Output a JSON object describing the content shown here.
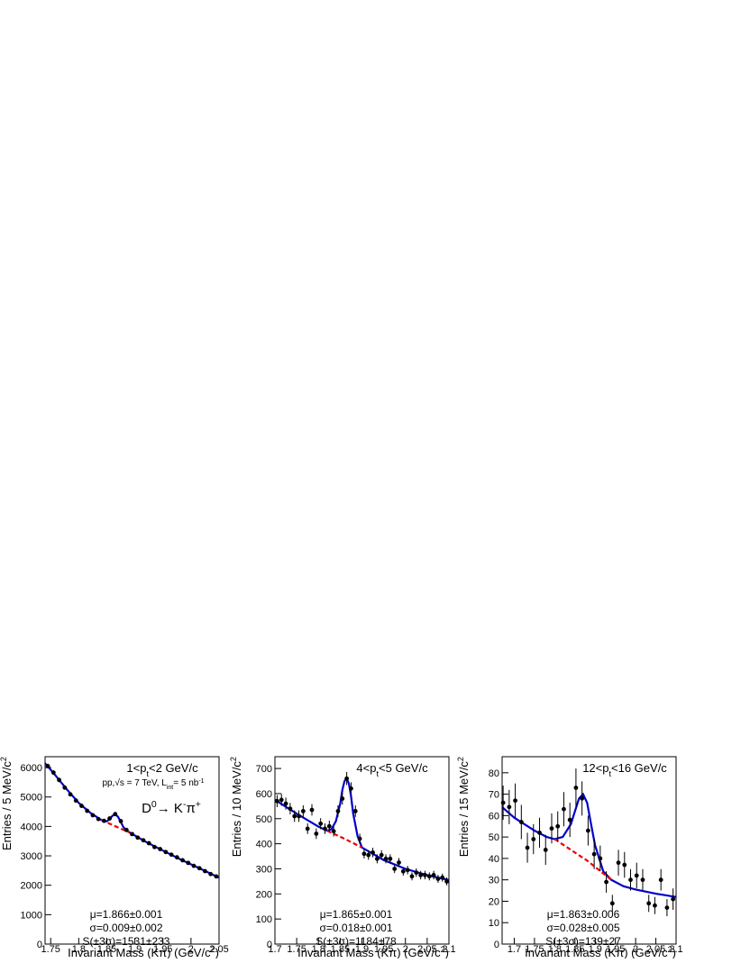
{
  "chart_data": [
    {
      "type": "errorbar",
      "title": [
        "1<p",
        {
          "text": "t",
          "pos": "sub"
        },
        "<2 GeV/c"
      ],
      "ylabel": [
        "Entries / 5 MeV/c",
        {
          "text": "2",
          "pos": "sup"
        }
      ],
      "xlabel": [
        "Invariant Mass (Kπ) (GeV/c",
        {
          "text": "2",
          "pos": "sup"
        },
        ")"
      ],
      "annotations": [
        [
          "pp,√s = 7 TeV, L",
          {
            "text": "int",
            "pos": "sub"
          },
          "= 5 nb",
          {
            "text": "-1",
            "pos": "sup"
          }
        ],
        [
          "D",
          {
            "text": "0",
            "pos": "sup"
          },
          "→ K",
          {
            "text": "-",
            "pos": "sup"
          },
          "π",
          {
            "text": "+",
            "pos": "sup"
          }
        ]
      ],
      "stats": [
        "μ=1.866±0.001",
        "σ=0.009±0.002",
        "S(±3σ)=1531±233"
      ],
      "xlim": [
        1.74,
        2.05
      ],
      "xticks": [
        1.75,
        1.8,
        1.85,
        1.9,
        1.95,
        2,
        2.05
      ],
      "ylim": [
        0,
        6370
      ],
      "yticks": [
        0,
        1000,
        2000,
        3000,
        4000,
        5000,
        6000
      ],
      "points": {
        "color": "#000000",
        "x": [
          1.745,
          1.755,
          1.765,
          1.775,
          1.785,
          1.795,
          1.805,
          1.815,
          1.825,
          1.835,
          1.845,
          1.855,
          1.865,
          1.875,
          1.885,
          1.895,
          1.905,
          1.915,
          1.925,
          1.935,
          1.945,
          1.955,
          1.965,
          1.975,
          1.985,
          1.995,
          2.005,
          2.015,
          2.025,
          2.035,
          2.045
        ],
        "values": [
          6050,
          5830,
          5580,
          5320,
          5090,
          4880,
          4700,
          4530,
          4380,
          4250,
          4190,
          4270,
          4420,
          4180,
          3880,
          3740,
          3620,
          3530,
          3430,
          3300,
          3230,
          3130,
          3040,
          2950,
          2850,
          2760,
          2660,
          2580,
          2480,
          2380,
          2300
        ],
        "errors": [
          80,
          78,
          76,
          74,
          72,
          70,
          69,
          68,
          67,
          66,
          65,
          66,
          67,
          65,
          63,
          62,
          61,
          60,
          59,
          58,
          57,
          56,
          55,
          55,
          54,
          53,
          52,
          51,
          50,
          49,
          48
        ]
      },
      "fit": {
        "color": "#0000cc",
        "x": [
          1.74,
          1.76,
          1.78,
          1.8,
          1.82,
          1.84,
          1.85,
          1.855,
          1.86,
          1.865,
          1.87,
          1.875,
          1.88,
          1.89,
          1.92,
          1.95,
          1.98,
          2.01,
          2.05
        ],
        "values": [
          6150,
          5700,
          5230,
          4800,
          4470,
          4220,
          4170,
          4250,
          4360,
          4410,
          4330,
          4150,
          3960,
          3800,
          3470,
          3180,
          2890,
          2620,
          2260
        ]
      },
      "background": {
        "color": "#ee0000",
        "dashed": true,
        "x": [
          1.84,
          1.86,
          1.88,
          1.89
        ],
        "values": [
          4220,
          4050,
          3880,
          3800
        ]
      }
    },
    {
      "type": "errorbar",
      "title": [
        "4<p",
        {
          "text": "t",
          "pos": "sub"
        },
        "<5 GeV/c"
      ],
      "ylabel": [
        "Entries / 10 MeV/c",
        {
          "text": "2",
          "pos": "sup"
        }
      ],
      "xlabel": [
        "Invariant Mass (Kπ) (GeV/c",
        {
          "text": "2",
          "pos": "sup"
        },
        ")"
      ],
      "annotations": [],
      "stats": [
        "μ=1.865±0.001",
        "σ=0.018±0.001",
        "S(±3σ)=1184±78"
      ],
      "xlim": [
        1.7,
        2.1
      ],
      "xticks": [
        1.7,
        1.75,
        1.8,
        1.85,
        1.9,
        1.95,
        2,
        2.05,
        2.1
      ],
      "ylim": [
        0,
        747
      ],
      "yticks": [
        0,
        100,
        200,
        300,
        400,
        500,
        600,
        700
      ],
      "points": {
        "color": "#000000",
        "x": [
          1.705,
          1.715,
          1.725,
          1.735,
          1.745,
          1.755,
          1.765,
          1.775,
          1.785,
          1.795,
          1.805,
          1.815,
          1.825,
          1.835,
          1.845,
          1.855,
          1.865,
          1.875,
          1.885,
          1.895,
          1.905,
          1.915,
          1.925,
          1.935,
          1.945,
          1.955,
          1.965,
          1.975,
          1.985,
          1.995,
          2.005,
          2.015,
          2.025,
          2.035,
          2.045,
          2.055,
          2.065,
          2.075,
          2.085,
          2.095
        ],
        "values": [
          570,
          575,
          560,
          540,
          510,
          510,
          530,
          460,
          535,
          440,
          480,
          460,
          470,
          450,
          530,
          580,
          660,
          620,
          530,
          420,
          360,
          355,
          365,
          340,
          355,
          340,
          340,
          300,
          325,
          290,
          295,
          270,
          285,
          275,
          275,
          270,
          275,
          260,
          265,
          250
        ],
        "errors": [
          24,
          24,
          24,
          23,
          23,
          23,
          23,
          21,
          23,
          21,
          22,
          21,
          22,
          21,
          23,
          24,
          26,
          25,
          23,
          20,
          19,
          19,
          19,
          18,
          19,
          18,
          18,
          17,
          18,
          17,
          17,
          16,
          17,
          17,
          17,
          16,
          17,
          16,
          16,
          16
        ]
      },
      "fit": {
        "color": "#0000cc",
        "x": [
          1.7,
          1.75,
          1.8,
          1.82,
          1.83,
          1.84,
          1.85,
          1.855,
          1.86,
          1.865,
          1.87,
          1.875,
          1.88,
          1.89,
          1.9,
          1.95,
          2.0,
          2.05,
          2.1
        ],
        "values": [
          575,
          520,
          468,
          452,
          458,
          490,
          560,
          615,
          650,
          660,
          640,
          590,
          520,
          430,
          385,
          335,
          300,
          275,
          255
        ]
      },
      "background": {
        "color": "#ee0000",
        "dashed": true,
        "x": [
          1.82,
          1.86,
          1.9
        ],
        "values": [
          452,
          420,
          385
        ]
      }
    },
    {
      "type": "errorbar",
      "title": [
        "12<p",
        {
          "text": "t",
          "pos": "sub"
        },
        "<16 GeV/c"
      ],
      "ylabel": [
        "Entries / 15 MeV/c",
        {
          "text": "2",
          "pos": "sup"
        }
      ],
      "xlabel": [
        "Invariant Mass (Kπ) (GeV/c",
        {
          "text": "2",
          "pos": "sup"
        },
        ")"
      ],
      "annotations": [],
      "stats": [
        "μ=1.863±0.006",
        "σ=0.028±0.005",
        "S(±3σ)=139±27"
      ],
      "xlim": [
        1.67,
        2.1
      ],
      "xticks": [
        1.7,
        1.75,
        1.8,
        1.85,
        1.9,
        1.95,
        2,
        2.05,
        2.1
      ],
      "ylim": [
        0,
        87.5
      ],
      "yticks": [
        0,
        10,
        20,
        30,
        40,
        50,
        60,
        70,
        80
      ],
      "points": {
        "color": "#000000",
        "x": [
          1.6725,
          1.6875,
          1.7025,
          1.7175,
          1.7325,
          1.7475,
          1.7625,
          1.7775,
          1.7925,
          1.8075,
          1.8225,
          1.8375,
          1.8525,
          1.8675,
          1.8825,
          1.8975,
          1.9125,
          1.9275,
          1.9425,
          1.9575,
          1.9725,
          1.9875,
          2.0025,
          2.0175,
          2.0325,
          2.0475,
          2.0625,
          2.0775,
          2.0925
        ],
        "values": [
          66,
          64,
          67,
          57,
          45,
          49,
          52,
          44,
          54,
          55,
          63,
          58,
          73,
          68,
          53,
          42,
          40,
          29,
          19,
          38,
          37,
          30,
          32,
          30,
          19,
          18,
          30,
          17,
          21
        ],
        "errors": [
          8,
          8,
          8,
          8,
          7,
          7,
          7,
          7,
          7,
          7,
          8,
          8,
          9,
          8,
          7,
          7,
          6,
          5,
          4,
          6,
          6,
          5,
          6,
          5,
          4,
          4,
          5,
          4,
          5
        ]
      },
      "fit": {
        "color": "#0000cc",
        "x": [
          1.67,
          1.7,
          1.75,
          1.78,
          1.8,
          1.82,
          1.84,
          1.85,
          1.86,
          1.87,
          1.88,
          1.89,
          1.9,
          1.92,
          1.94,
          1.97,
          2.0,
          2.05,
          2.1
        ],
        "values": [
          64,
          59,
          53,
          50,
          49,
          50,
          56,
          62,
          68,
          70,
          66,
          56,
          46,
          34,
          30,
          27,
          25.5,
          23.5,
          22
        ]
      },
      "background": {
        "color": "#ee0000",
        "dashed": true,
        "x": [
          1.8,
          1.84,
          1.88,
          1.92,
          1.94
        ],
        "values": [
          49,
          44,
          39,
          33,
          30
        ]
      }
    }
  ]
}
